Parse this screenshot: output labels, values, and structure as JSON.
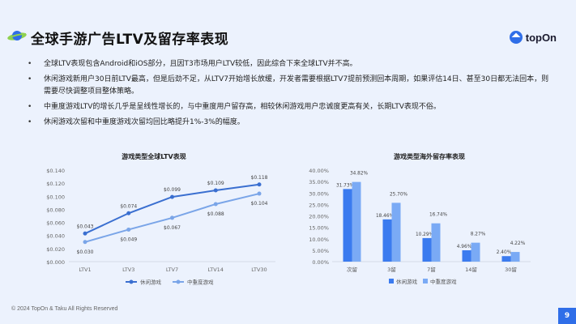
{
  "header": {
    "title": "全球手游广告LTV及留存率表现",
    "logo_text": "topOn"
  },
  "bullets": [
    "全球LTV表现包含Android和iOS部分，且因T3市场用户LTV较低，因此综合下来全球LTV并不高。",
    "休闲游戏新用户30日前LTV最高，但是后劲不足，从LTV7开始增长放缓，开发者需要根据LTV7提前预测回本周期，如果评估14日、甚至30日都无法回本，则需要尽快调整项目整体策略。",
    "中重度游戏LTV的增长几乎是呈线性增长的，与中重度用户留存高，相较休闲游戏用户忠诚度更高有关，长期LTV表现不俗。",
    "休闲游戏次留和中重度游戏次留均回比略提升1%-3%的幅度。"
  ],
  "chart_data": [
    {
      "type": "line",
      "title": "游戏类型全球LTV表现",
      "categories": [
        "LTV1",
        "LTV3",
        "LTV7",
        "LTV14",
        "LTV30"
      ],
      "series": [
        {
          "name": "休闲游戏",
          "values": [
            0.043,
            0.074,
            0.099,
            0.109,
            0.118
          ],
          "labels": [
            "$0.043",
            "$0.074",
            "$0.099",
            "$0.109",
            "$0.118"
          ],
          "color": "#3a6fd0"
        },
        {
          "name": "中重度游戏",
          "values": [
            0.03,
            0.049,
            0.067,
            0.088,
            0.104
          ],
          "labels": [
            "$0.030",
            "$0.049",
            "$0.067",
            "$0.088",
            "$0.104"
          ],
          "color": "#7aa5e8"
        }
      ],
      "y_ticks": [
        "$0.000",
        "$0.020",
        "$0.040",
        "$0.060",
        "$0.080",
        "$0.100",
        "$0.120",
        "$0.140"
      ],
      "ylim": [
        0,
        0.14
      ],
      "legend_position": "bottom"
    },
    {
      "type": "bar",
      "title": "游戏类型海外留存率表现",
      "categories": [
        "次留",
        "3留",
        "7留",
        "14留",
        "30留"
      ],
      "series": [
        {
          "name": "休闲游戏",
          "values": [
            31.73,
            18.46,
            10.29,
            4.96,
            2.4
          ],
          "labels": [
            "31.73%",
            "18.46%",
            "10.29%",
            "4.96%",
            "2.40%"
          ],
          "color": "#3b7bef"
        },
        {
          "name": "中重度游戏",
          "values": [
            34.82,
            25.7,
            16.74,
            8.27,
            4.22
          ],
          "labels": [
            "34.82%",
            "25.70%",
            "16.74%",
            "8.27%",
            "4.22%"
          ],
          "color": "#7aaaf5"
        }
      ],
      "y_ticks": [
        "0.00%",
        "5.00%",
        "10.00%",
        "15.00%",
        "20.00%",
        "25.00%",
        "30.00%",
        "35.00%",
        "40.00%"
      ],
      "ylim": [
        0,
        40
      ],
      "legend_position": "bottom"
    }
  ],
  "footer": {
    "copyright": "© 2024 TopOn & Taku All Rights Reserved",
    "page_number": "9"
  }
}
